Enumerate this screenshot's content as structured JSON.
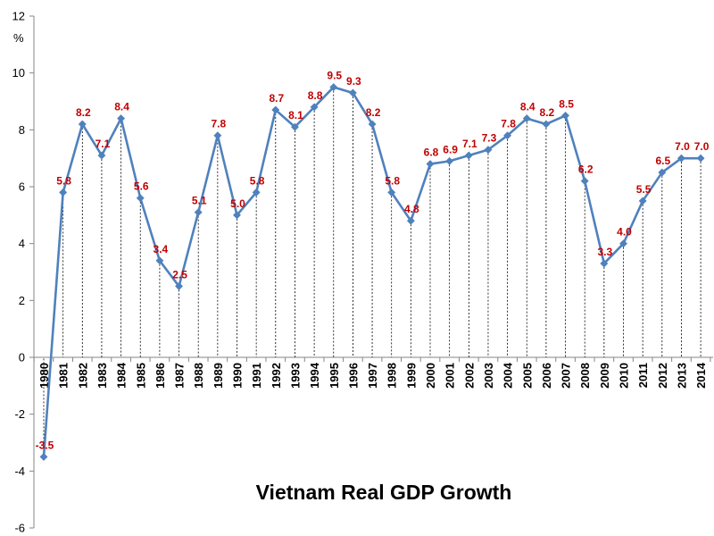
{
  "chart_data": {
    "type": "line",
    "title": "Vietnam Real GDP Growth",
    "ylabel_unit": "%",
    "ylim": [
      -6,
      12
    ],
    "y_ticks": [
      -6,
      -4,
      -2,
      0,
      2,
      4,
      6,
      8,
      10,
      12
    ],
    "y_tick_labels": [
      "-6",
      "-4",
      "-2",
      "0",
      "2",
      "4",
      "6",
      "8",
      "10",
      "12"
    ],
    "categories": [
      "1980",
      "1981",
      "1982",
      "1983",
      "1984",
      "1985",
      "1986",
      "1987",
      "1988",
      "1989",
      "1990",
      "1991",
      "1992",
      "1993",
      "1994",
      "1995",
      "1996",
      "1997",
      "1998",
      "1999",
      "2000",
      "2001",
      "2002",
      "2003",
      "2004",
      "2005",
      "2006",
      "2007",
      "2008",
      "2009",
      "2010",
      "2011",
      "2012",
      "2013",
      "2014"
    ],
    "values": [
      -3.5,
      5.8,
      8.2,
      7.1,
      8.4,
      5.6,
      3.4,
      2.5,
      5.1,
      7.8,
      5.0,
      5.8,
      8.7,
      8.1,
      8.8,
      9.5,
      9.3,
      8.2,
      5.8,
      4.8,
      6.8,
      6.9,
      7.1,
      7.3,
      7.8,
      8.4,
      8.2,
      8.5,
      6.2,
      3.3,
      4.0,
      5.5,
      6.5,
      7.0,
      7.0
    ],
    "data_labels": [
      "-3.5",
      "5.8",
      "8.2",
      "7.1",
      "8.4",
      "5.6",
      "3.4",
      "2.5",
      "5.1",
      "7.8",
      "5.0",
      "5.8",
      "8.7",
      "8.1",
      "8.8",
      "9.5",
      "9.3",
      "8.2",
      "5.8",
      "4.8",
      "6.8",
      "6.9",
      "7.1",
      "7.3",
      "7.8",
      "8.4",
      "8.2",
      "8.5",
      "6.2",
      "3.3",
      "4.0",
      "5.5",
      "6.5",
      "7.0",
      "7.0"
    ],
    "grid": false,
    "drop_lines": true,
    "colors": {
      "line": "#4f81bd",
      "marker": "#4f81bd",
      "data_label": "#c00000",
      "axis": "#868686",
      "drop_line": "#000000"
    }
  }
}
